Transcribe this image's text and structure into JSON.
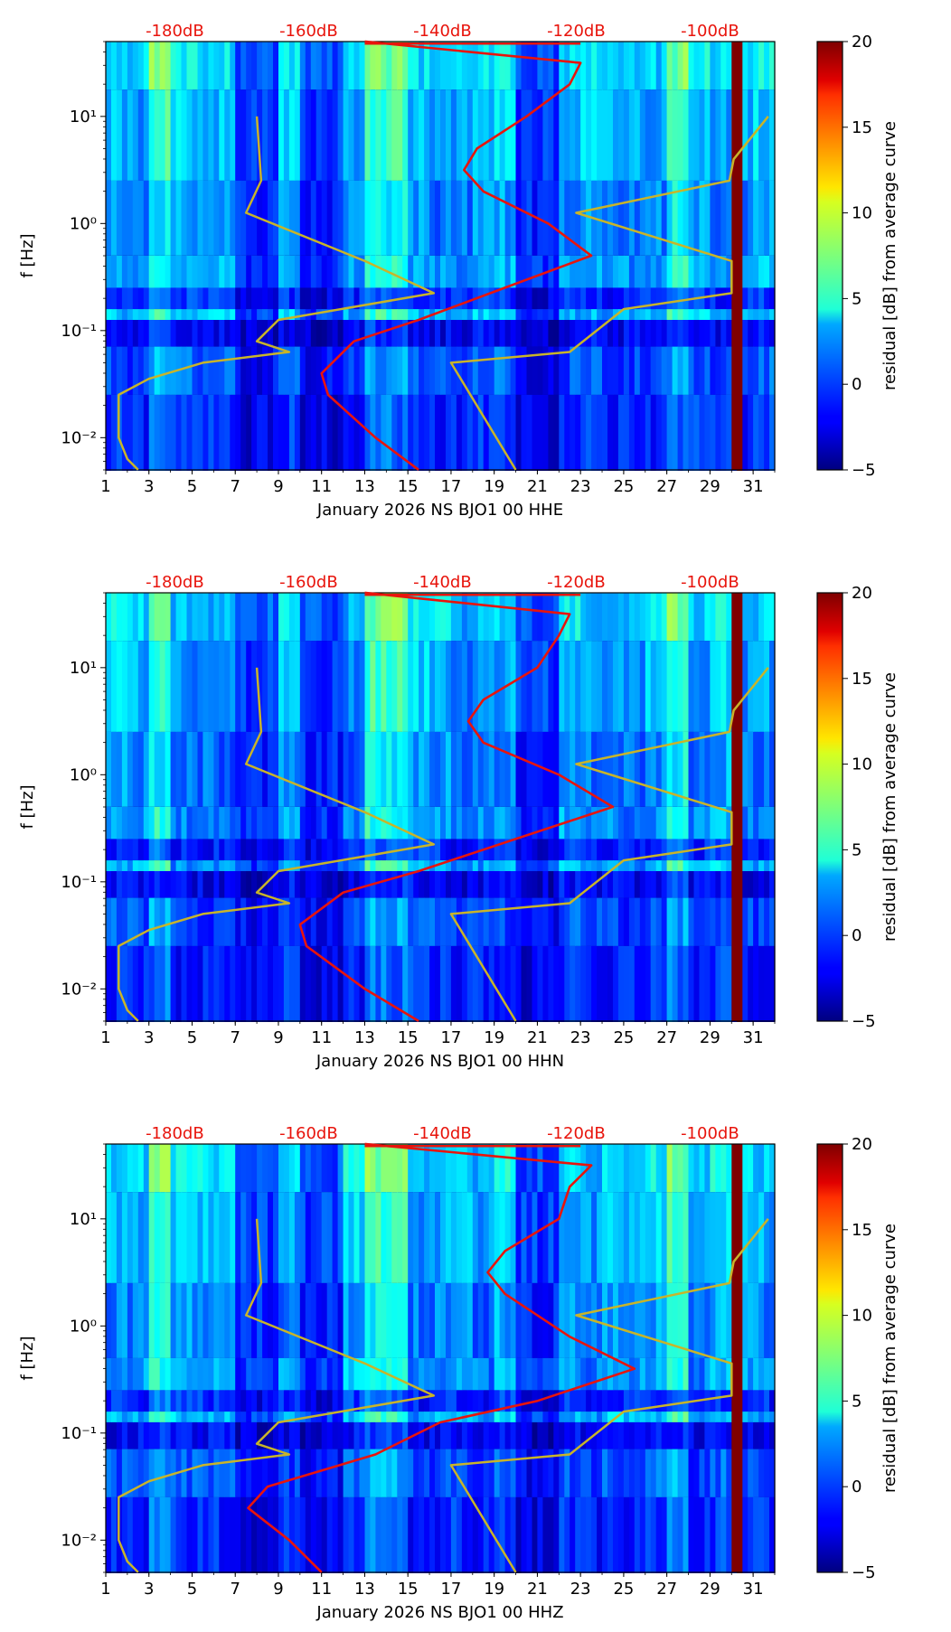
{
  "chart_data": [
    {
      "type": "heatmap",
      "title": "",
      "xlabel": "January 2026 NS BJO1 00 HHE",
      "ylabel": "f [Hz]",
      "x_ticks": [
        "1",
        "3",
        "5",
        "7",
        "9",
        "11",
        "13",
        "15",
        "17",
        "19",
        "21",
        "23",
        "25",
        "27",
        "29",
        "31"
      ],
      "y_ticks": [
        "10⁻²",
        "10⁻¹",
        "10⁰",
        "10¹"
      ],
      "top_axis_ticks": [
        "-180dB",
        "-160dB",
        "-140dB",
        "-120dB",
        "-100dB"
      ],
      "xlim": [
        1,
        32
      ],
      "ylim": [
        0.005,
        50
      ],
      "colorbar": {
        "label": "residual [dB] from average curve",
        "range": [
          -5,
          20
        ],
        "ticks": [
          "−5",
          "0",
          "5",
          "10",
          "15",
          "20"
        ]
      },
      "red_curve_knots": {
        "logf": [
          -2.3,
          -2.0,
          -1.6,
          -1.4,
          -1.1,
          -0.9,
          -0.6,
          -0.3,
          0.0,
          0.3,
          0.5,
          0.7,
          1.0,
          1.3,
          1.5,
          1.7
        ],
        "x": [
          15.5,
          13.5,
          11.3,
          11.0,
          12.5,
          15.5,
          19.5,
          23.5,
          21.5,
          18.5,
          17.6,
          18.2,
          20.5,
          22.5,
          23.0,
          13.0
        ]
      }
    },
    {
      "type": "heatmap",
      "title": "",
      "xlabel": "January 2026 NS BJO1 00 HHN",
      "ylabel": "f [Hz]",
      "x_ticks": [
        "1",
        "3",
        "5",
        "7",
        "9",
        "11",
        "13",
        "15",
        "17",
        "19",
        "21",
        "23",
        "25",
        "27",
        "29",
        "31"
      ],
      "y_ticks": [
        "10⁻²",
        "10⁻¹",
        "10⁰",
        "10¹"
      ],
      "top_axis_ticks": [
        "-180dB",
        "-160dB",
        "-140dB",
        "-120dB",
        "-100dB"
      ],
      "xlim": [
        1,
        32
      ],
      "ylim": [
        0.005,
        50
      ],
      "colorbar": {
        "label": "residual [dB] from average curve",
        "range": [
          -5,
          20
        ],
        "ticks": [
          "−5",
          "0",
          "5",
          "10",
          "15",
          "20"
        ]
      },
      "red_curve_knots": {
        "logf": [
          -2.3,
          -2.0,
          -1.6,
          -1.4,
          -1.1,
          -0.9,
          -0.6,
          -0.3,
          0.0,
          0.3,
          0.5,
          0.7,
          1.0,
          1.3,
          1.5,
          1.7
        ],
        "x": [
          15.5,
          13.0,
          10.3,
          10.0,
          12.0,
          15.5,
          20.0,
          24.5,
          22.0,
          18.5,
          17.8,
          18.5,
          21.0,
          22.0,
          22.5,
          13.0
        ]
      }
    },
    {
      "type": "heatmap",
      "title": "",
      "xlabel": "January 2026 NS BJO1 00 HHZ",
      "ylabel": "f [Hz]",
      "x_ticks": [
        "1",
        "3",
        "5",
        "7",
        "9",
        "11",
        "13",
        "15",
        "17",
        "19",
        "21",
        "23",
        "25",
        "27",
        "29",
        "31"
      ],
      "y_ticks": [
        "10⁻²",
        "10⁻¹",
        "10⁰",
        "10¹"
      ],
      "top_axis_ticks": [
        "-180dB",
        "-160dB",
        "-140dB",
        "-120dB",
        "-100dB"
      ],
      "xlim": [
        1,
        32
      ],
      "ylim": [
        0.005,
        50
      ],
      "colorbar": {
        "label": "residual [dB] from average curve",
        "range": [
          -5,
          20
        ],
        "ticks": [
          "−5",
          "0",
          "5",
          "10",
          "15",
          "20"
        ]
      },
      "red_curve_knots": {
        "logf": [
          -2.3,
          -2.0,
          -1.7,
          -1.5,
          -1.2,
          -0.9,
          -0.7,
          -0.4,
          -0.1,
          0.3,
          0.5,
          0.7,
          1.0,
          1.3,
          1.5,
          1.7
        ],
        "x": [
          11.0,
          9.5,
          7.6,
          8.5,
          13.5,
          16.5,
          21.0,
          25.5,
          22.5,
          19.5,
          18.7,
          19.5,
          22.0,
          22.5,
          23.5,
          13.0
        ]
      }
    }
  ],
  "yellow_curve_knots": {
    "note": "shared noise-model envelopes, x in day units, logf in log10 Hz",
    "low": {
      "logf": [
        -2.3,
        -2.2,
        -2.0,
        -1.6,
        -1.45,
        -1.3,
        -1.2,
        -1.1,
        -0.9,
        -0.65,
        -0.35,
        0.1,
        0.4,
        1.0
      ],
      "x": [
        2.5,
        2.0,
        1.6,
        1.6,
        3.0,
        5.5,
        9.5,
        8.0,
        9.0,
        16.2,
        13.0,
        7.5,
        8.2,
        8.0
      ]
    },
    "high": {
      "logf": [
        -2.3,
        -1.3,
        -1.2,
        -0.8,
        -0.65,
        -0.35,
        0.1,
        0.4,
        0.6,
        1.0
      ],
      "x": [
        20.0,
        17.0,
        22.5,
        25.0,
        30.0,
        30.0,
        22.8,
        29.9,
        30.1,
        31.7
      ]
    }
  },
  "colors": {
    "red_curve": "#e8140c",
    "yellow_curve": "#c8b42a",
    "db_label": "#e8140c",
    "dark_bar": "#7f0000"
  }
}
